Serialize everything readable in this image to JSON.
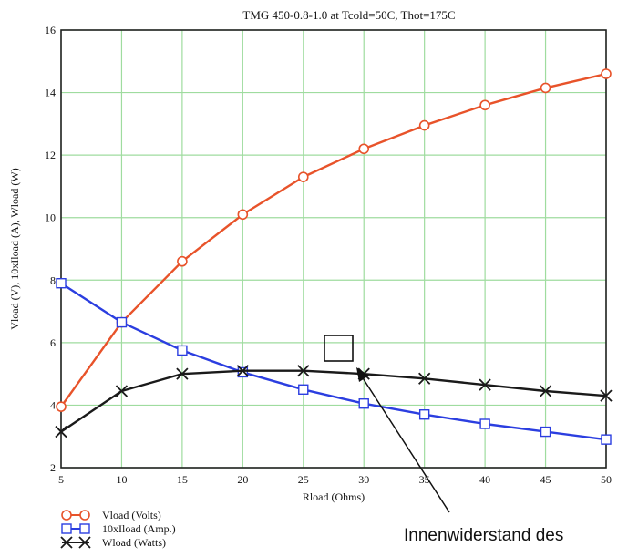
{
  "chart_data": {
    "type": "line",
    "title": "TMG 450-0.8-1.0 at Tcold=50C, Thot=175C",
    "xlabel": "Rload (Ohms)",
    "ylabel": "Vload (V), 10xIload (A), Wload (W)",
    "xlim": [
      5,
      50
    ],
    "ylim": [
      2,
      16
    ],
    "x": [
      5,
      10,
      15,
      20,
      25,
      30,
      35,
      40,
      45,
      50
    ],
    "x_ticks": [
      "5",
      "10",
      "15",
      "20",
      "25",
      "30",
      "35",
      "40",
      "45",
      "50"
    ],
    "y_ticks": [
      "2",
      "4",
      "6",
      "8",
      "10",
      "12",
      "14",
      "16"
    ],
    "grid": true,
    "legend_position": "bottom-left, below plot",
    "series": [
      {
        "name": "Vload (Volts)",
        "color": "#e8532a",
        "marker": "circle",
        "values": [
          3.95,
          6.65,
          8.6,
          10.1,
          11.3,
          12.2,
          12.95,
          13.6,
          14.15,
          14.6
        ]
      },
      {
        "name": "10xIload (Amp.)",
        "color": "#2b3ee0",
        "marker": "square",
        "values": [
          7.9,
          6.65,
          5.75,
          5.05,
          4.5,
          4.05,
          3.7,
          3.4,
          3.15,
          2.9
        ]
      },
      {
        "name": "Wload (Watts)",
        "color": "#1a1a1a",
        "marker": "x",
        "values": [
          3.15,
          4.45,
          5.0,
          5.1,
          5.1,
          5.0,
          4.85,
          4.65,
          4.45,
          4.3
        ]
      }
    ],
    "annotation": {
      "text": "Innenwiderstand des"
    }
  }
}
